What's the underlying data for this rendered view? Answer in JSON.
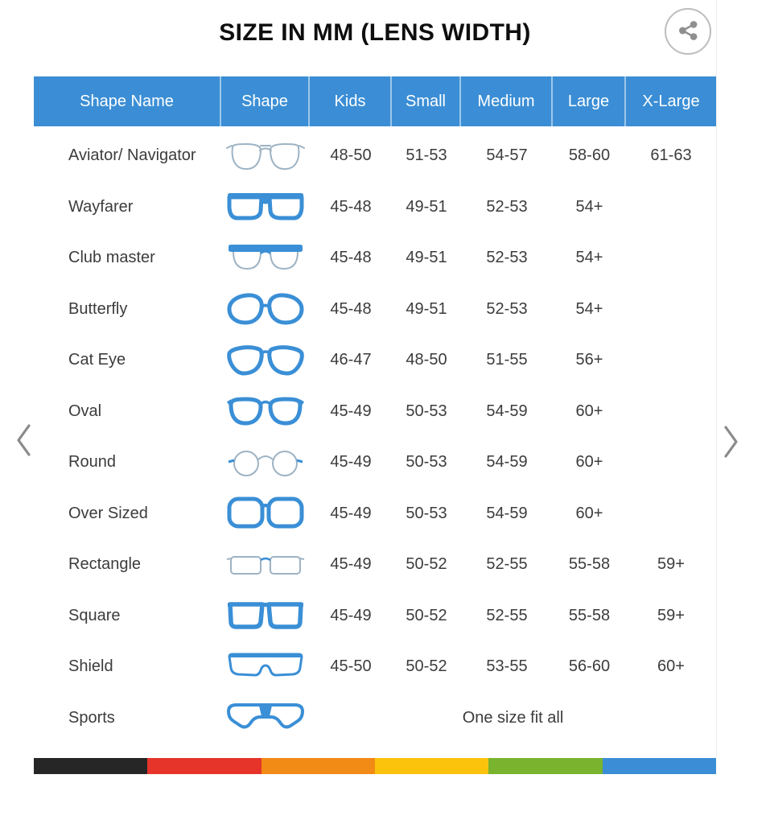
{
  "title": "SIZE IN MM (LENS WIDTH)",
  "colors": {
    "header_bg": "#3b8ed5",
    "frame_blue": "#3a8fd6",
    "frame_gray": "#9db3c4",
    "chevron_gray": "#8a8a8a",
    "share_gray": "#8f8f8f"
  },
  "table": {
    "columns": [
      "Shape Name",
      "Shape",
      "Kids",
      "Small",
      "Medium",
      "Large",
      "X-Large"
    ],
    "rows": [
      {
        "name": "Aviator/ Navigator",
        "icon": "aviator-glasses-icon",
        "sizes": [
          "48-50",
          "51-53",
          "54-57",
          "58-60",
          "61-63"
        ]
      },
      {
        "name": "Wayfarer",
        "icon": "wayfarer-glasses-icon",
        "sizes": [
          "45-48",
          "49-51",
          "52-53",
          "54+",
          ""
        ]
      },
      {
        "name": "Club master",
        "icon": "clubmaster-glasses-icon",
        "sizes": [
          "45-48",
          "49-51",
          "52-53",
          "54+",
          ""
        ]
      },
      {
        "name": "Butterfly",
        "icon": "butterfly-glasses-icon",
        "sizes": [
          "45-48",
          "49-51",
          "52-53",
          "54+",
          ""
        ]
      },
      {
        "name": "Cat Eye",
        "icon": "cateye-glasses-icon",
        "sizes": [
          "46-47",
          "48-50",
          "51-55",
          "56+",
          ""
        ]
      },
      {
        "name": "Oval",
        "icon": "oval-glasses-icon",
        "sizes": [
          "45-49",
          "50-53",
          "54-59",
          "60+",
          ""
        ]
      },
      {
        "name": "Round",
        "icon": "round-glasses-icon",
        "sizes": [
          "45-49",
          "50-53",
          "54-59",
          "60+",
          ""
        ]
      },
      {
        "name": "Over Sized",
        "icon": "oversized-glasses-icon",
        "sizes": [
          "45-49",
          "50-53",
          "54-59",
          "60+",
          ""
        ]
      },
      {
        "name": "Rectangle",
        "icon": "rectangle-glasses-icon",
        "sizes": [
          "45-49",
          "50-52",
          "52-55",
          "55-58",
          "59+"
        ]
      },
      {
        "name": "Square",
        "icon": "square-glasses-icon",
        "sizes": [
          "45-49",
          "50-52",
          "52-55",
          "55-58",
          "59+"
        ]
      },
      {
        "name": "Shield",
        "icon": "shield-glasses-icon",
        "sizes": [
          "45-50",
          "50-52",
          "53-55",
          "56-60",
          "60+"
        ]
      },
      {
        "name": "Sports",
        "icon": "sports-glasses-icon",
        "span_text": "One size fit all"
      }
    ]
  },
  "footer_bar_colors": [
    "#262626",
    "#e6342b",
    "#f28a16",
    "#fcc30d",
    "#7ab32e",
    "#3b8ed5"
  ]
}
